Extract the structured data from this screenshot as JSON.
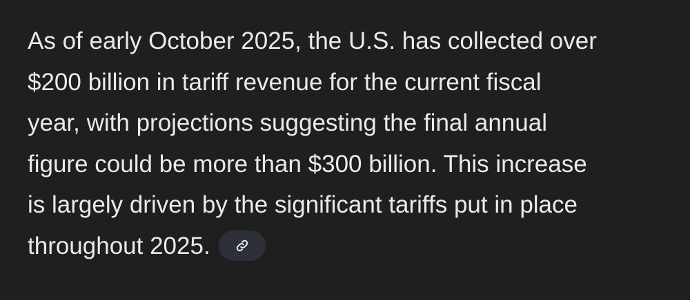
{
  "paragraph": {
    "lines": [
      "As of early October 2025, the U.S. has collected over",
      "$200 billion in tariff revenue for the current fiscal",
      "year, with projections suggesting the final annual",
      "figure could be more than $300 billion. This increase",
      "is largely driven by the significant tariffs put in place",
      "throughout 2025."
    ]
  }
}
